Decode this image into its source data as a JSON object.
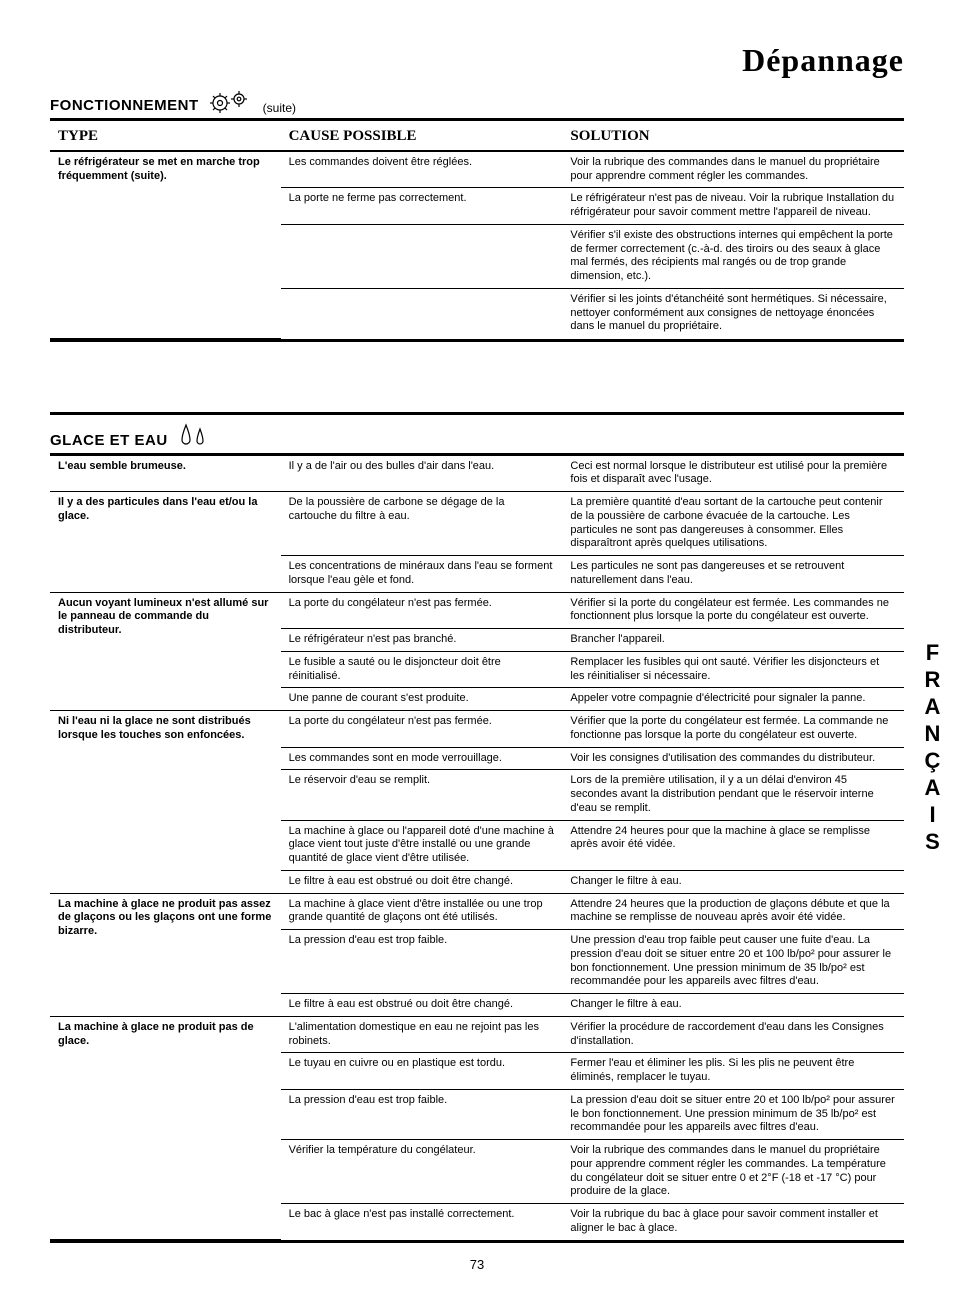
{
  "page_title": "Dépannage",
  "page_number": "73",
  "side_tab": "FRANÇAIS",
  "section1": {
    "label": "FONCTIONNEMENT",
    "suffix": "(suite)"
  },
  "section2": {
    "label": "GLACE ET EAU"
  },
  "headers": {
    "type": "TYPE",
    "cause": "CAUSE POSSIBLE",
    "solution": "SOLUTION"
  },
  "table1": [
    {
      "type": "Le réfrigérateur se met en marche trop fréquemment (suite).",
      "rows": [
        {
          "cause": "Les commandes doivent être réglées.",
          "solution": "Voir la rubrique des commandes dans le manuel du propriétaire pour apprendre comment régler les commandes."
        },
        {
          "cause": "La porte ne ferme pas correctement.",
          "solution": "Le réfrigérateur n'est pas de niveau. Voir la rubrique Installation du réfrigérateur pour savoir comment mettre l'appareil de niveau."
        },
        {
          "cause": "",
          "solution": "Vérifier s'il existe des obstructions internes qui empêchent la porte de fermer correctement (c.-à-d. des tiroirs ou des seaux à glace mal fermés, des récipients mal rangés ou de trop grande dimension, etc.)."
        },
        {
          "cause": "",
          "solution": "Vérifier si les joints d'étanchéité sont hermétiques. Si nécessaire, nettoyer conformément aux consignes de nettoyage énoncées dans le manuel du propriétaire."
        }
      ]
    }
  ],
  "table2": [
    {
      "type": "L'eau semble brumeuse.",
      "rows": [
        {
          "cause": "Il y a de l'air ou des bulles d'air dans l'eau.",
          "solution": "Ceci est normal lorsque le distributeur est utilisé pour la première fois et disparaît avec l'usage."
        }
      ]
    },
    {
      "type": "Il y a des particules dans l'eau et/ou la glace.",
      "rows": [
        {
          "cause": "De la poussière de carbone se dégage de la cartouche du filtre à eau.",
          "solution": "La première quantité d'eau sortant de la cartouche peut contenir de la poussière de carbone évacuée de la cartouche. Les particules ne sont pas dangereuses à consommer. Elles disparaîtront après quelques utilisations."
        },
        {
          "cause": "Les concentrations de minéraux dans l'eau se forment lorsque l'eau gèle et fond.",
          "solution": "Les particules ne sont pas dangereuses et se retrouvent naturellement dans l'eau."
        }
      ]
    },
    {
      "type": "Aucun voyant lumineux n'est allumé sur le panneau de commande du distributeur.",
      "rows": [
        {
          "cause": "La porte du congélateur n'est pas fermée.",
          "solution": "Vérifier si la porte du congélateur est fermée. Les commandes ne fonctionnent plus lorsque la porte du congélateur est ouverte."
        },
        {
          "cause": "Le réfrigérateur n'est pas branché.",
          "solution": "Brancher l'appareil."
        },
        {
          "cause": "Le fusible a sauté ou le disjoncteur doit être réinitialisé.",
          "solution": "Remplacer les fusibles qui ont sauté. Vérifier les disjoncteurs et les réinitialiser si nécessaire."
        },
        {
          "cause": "Une panne de courant s'est produite.",
          "solution": "Appeler votre compagnie d'électricité pour signaler la panne."
        }
      ]
    },
    {
      "type": "Ni l'eau ni la glace ne sont distribués lorsque les touches son enfoncées.",
      "rows": [
        {
          "cause": "La porte du congélateur n'est pas fermée.",
          "solution": "Vérifier que la porte du congélateur est fermée. La commande ne fonctionne pas lorsque la porte du congélateur est ouverte."
        },
        {
          "cause": "Les commandes sont en mode verrouillage.",
          "solution": "Voir les consignes d'utilisation des commandes du distributeur."
        },
        {
          "cause": "Le réservoir d'eau se remplit.",
          "solution": "Lors de la première utilisation, il y a un délai d'environ 45 secondes avant la distribution pendant que le réservoir interne d'eau se remplit."
        },
        {
          "cause": "La machine à glace ou l'appareil doté d'une machine à glace vient tout juste d'être installé ou une grande quantité de glace vient d'être utilisée.",
          "solution": "Attendre 24 heures pour que la machine à glace se remplisse après avoir été vidée."
        },
        {
          "cause": "Le filtre à eau est obstrué ou doit être changé.",
          "solution": "Changer le filtre à eau."
        }
      ]
    },
    {
      "type": "La machine à glace ne produit pas assez de glaçons ou les glaçons ont une forme bizarre.",
      "rows": [
        {
          "cause": "La machine à glace vient d'être installée ou une trop grande quantité de glaçons ont été utilisés.",
          "solution": "Attendre 24 heures que la production de glaçons débute et que la machine se remplisse de nouveau après avoir été vidée."
        },
        {
          "cause": "La pression d'eau est trop faible.",
          "solution": "Une pression d'eau trop faible peut causer une fuite d'eau. La pression d'eau doit se situer entre 20 et 100 lb/po² pour assurer le bon fonctionnement. Une pression minimum de 35 lb/po² est recommandée pour les appareils avec filtres d'eau."
        },
        {
          "cause": "Le filtre à eau est obstrué ou doit être changé.",
          "solution": "Changer le filtre à eau."
        }
      ]
    },
    {
      "type": "La machine à glace ne produit pas de glace.",
      "rows": [
        {
          "cause": "L'alimentation domestique en eau ne rejoint pas les robinets.",
          "solution": "Vérifier la procédure de raccordement d'eau dans les Consignes d'installation."
        },
        {
          "cause": "Le tuyau en cuivre ou en plastique est tordu.",
          "solution": "Fermer l'eau et éliminer les plis. Si les plis ne peuvent être éliminés, remplacer le tuyau."
        },
        {
          "cause": "La pression d'eau est trop faible.",
          "solution": "La pression d'eau doit se situer entre 20 et 100 lb/po² pour assurer le bon fonctionnement. Une pression minimum de 35 lb/po² est recommandée pour les appareils avec filtres d'eau."
        },
        {
          "cause": "Vérifier la température du congélateur.",
          "solution": "Voir la rubrique des commandes dans le manuel du propriétaire pour apprendre comment régler les commandes. La température du congélateur doit se situer entre 0 et 2°F (-18 et -17 °C) pour produire de la glace."
        },
        {
          "cause": "Le bac à glace n'est pas installé correctement.",
          "solution": "Voir la rubrique du bac à glace pour savoir comment installer et aligner le bac à glace."
        }
      ]
    }
  ]
}
